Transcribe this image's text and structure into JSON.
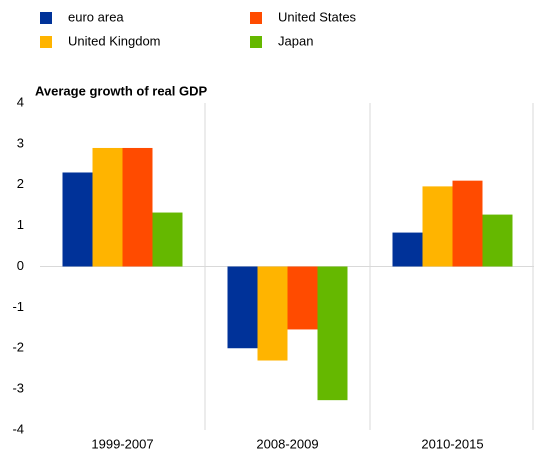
{
  "chart_data": {
    "type": "bar",
    "title": "Average growth of real GDP",
    "categories": [
      "1999-2007",
      "2008-2009",
      "2010-2015"
    ],
    "series": [
      {
        "name": "euro area",
        "color": "#003299",
        "values": [
          2.3,
          -2.0,
          0.83
        ]
      },
      {
        "name": "United Kingdom",
        "color": "#ffb400",
        "values": [
          2.9,
          -2.3,
          1.96
        ]
      },
      {
        "name": "United States",
        "color": "#ff4b00",
        "values": [
          2.9,
          -1.54,
          2.1
        ]
      },
      {
        "name": "Japan",
        "color": "#65b800",
        "values": [
          1.32,
          -3.27,
          1.27
        ]
      }
    ],
    "ylim": [
      -4,
      4
    ],
    "yticks": [
      -4,
      -3,
      -2,
      -1,
      0,
      1,
      2,
      3,
      4
    ]
  }
}
